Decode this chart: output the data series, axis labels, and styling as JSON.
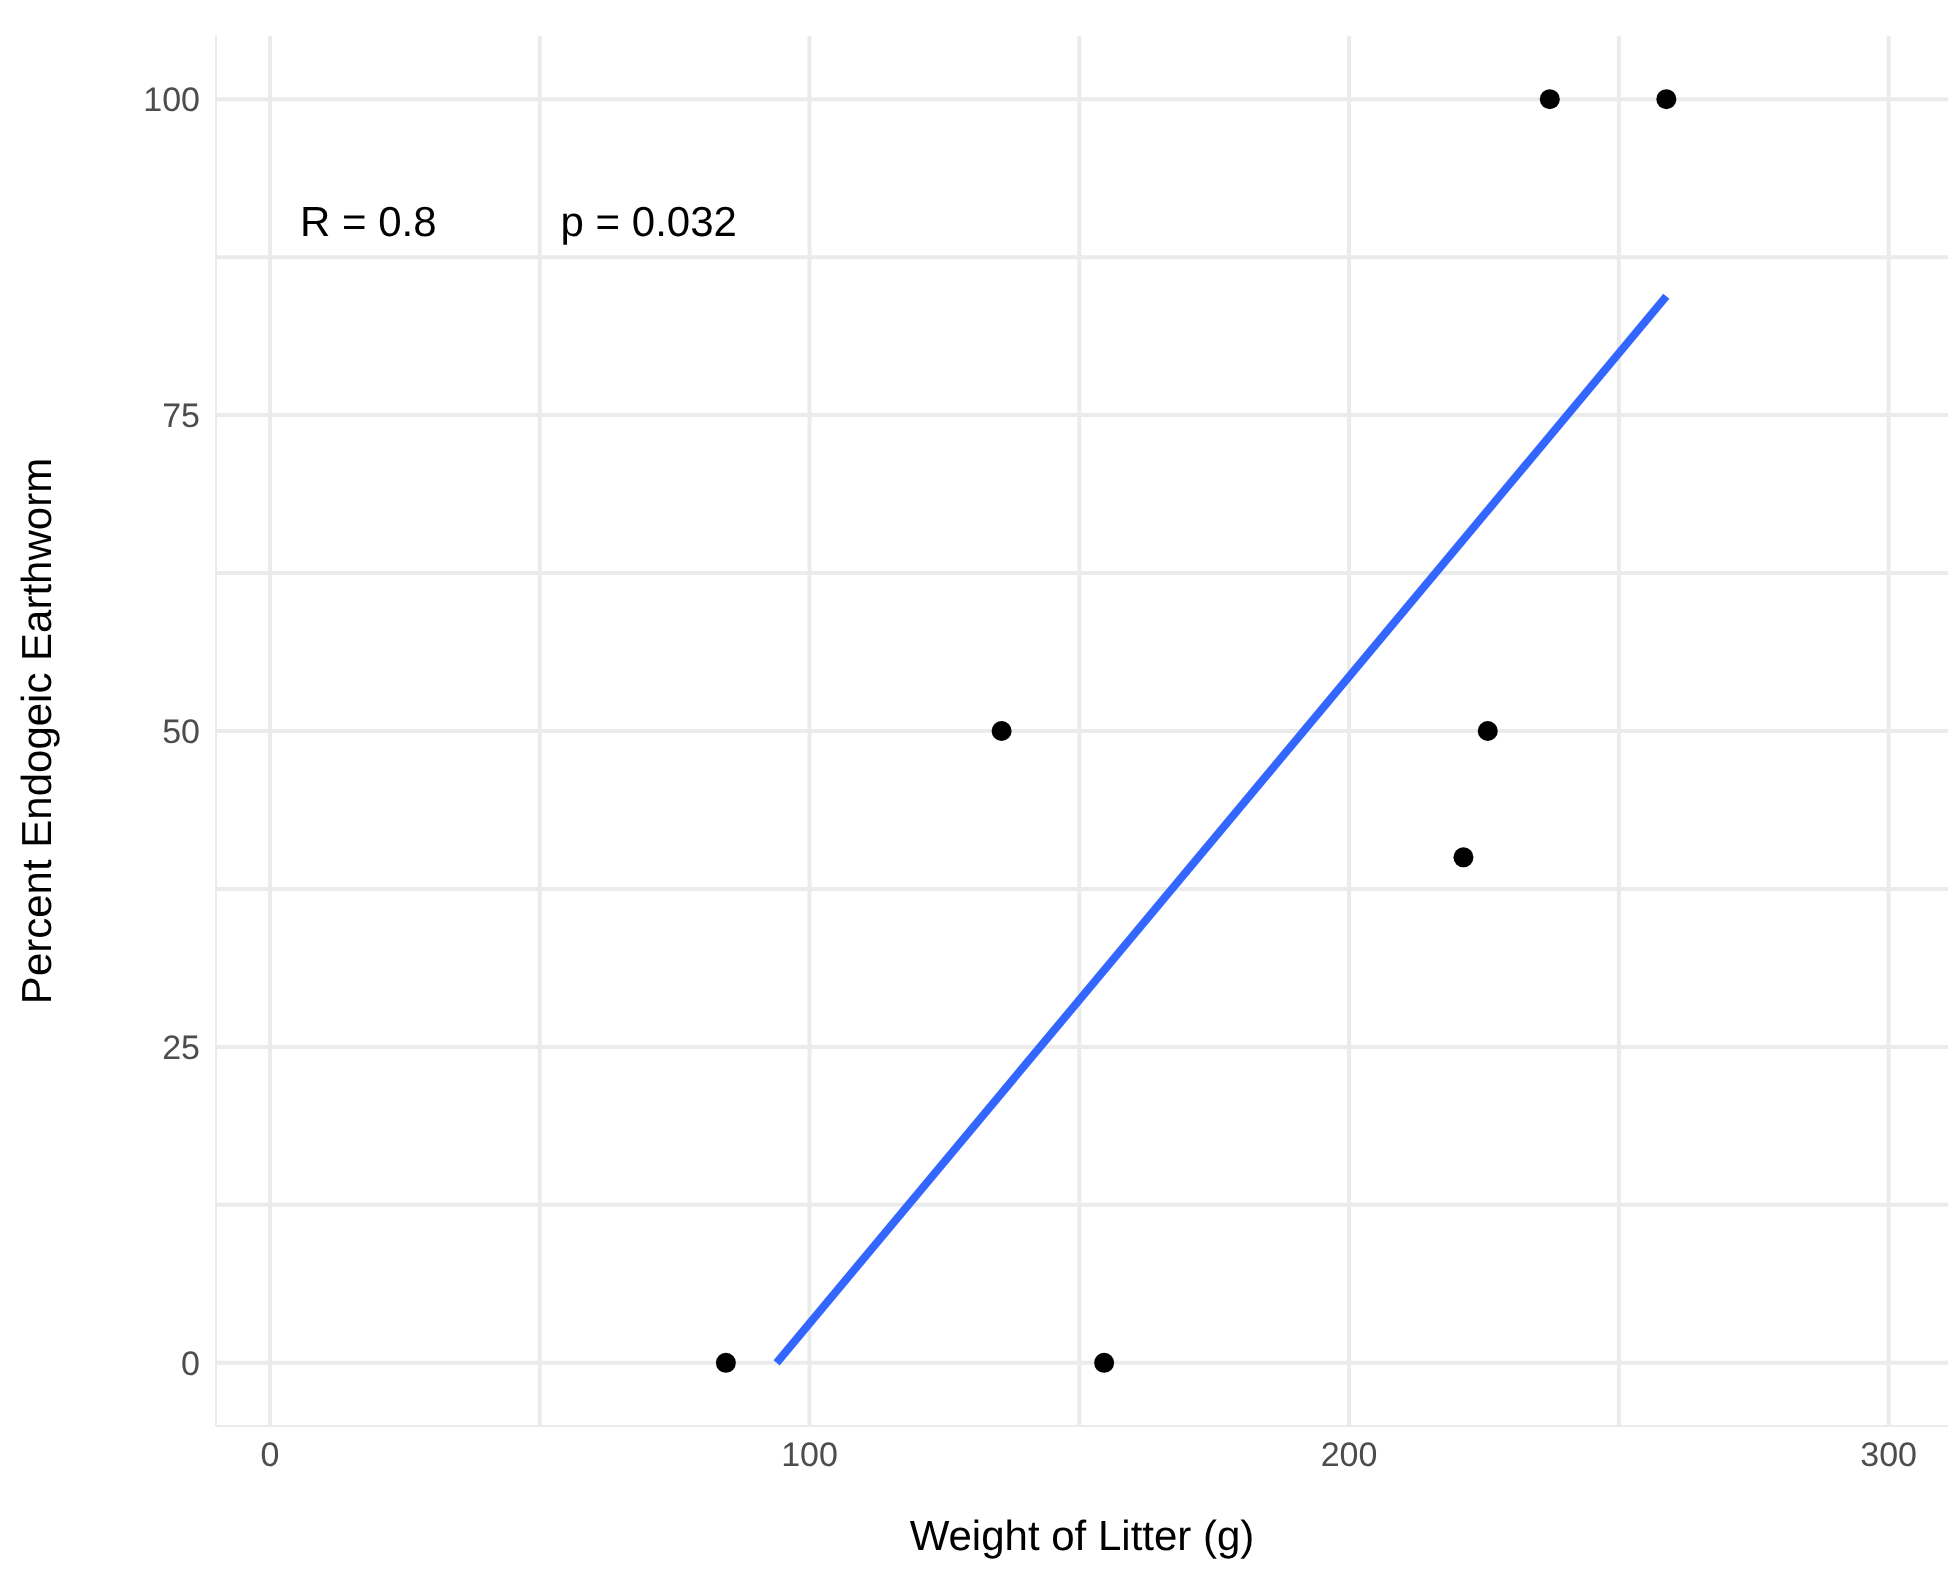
{
  "chart_data": {
    "type": "scatter",
    "xlabel": "Weight of Litter (g)",
    "ylabel": "Percent Endogeic Earthworm",
    "xlim": [
      -10,
      311
    ],
    "ylim": [
      -5,
      105
    ],
    "xticks": [
      0,
      {
        "value": 50,
        "label": null
      },
      100,
      {
        "value": 150,
        "label": null
      },
      200,
      {
        "value": 250,
        "label": null
      },
      300
    ],
    "yticks": [
      0,
      {
        "value": 12.5,
        "label": null
      },
      25,
      {
        "value": 37.5,
        "label": null
      },
      50,
      {
        "value": 62.5,
        "label": null
      },
      75,
      {
        "value": 87.5,
        "label": null
      },
      100
    ],
    "grid": true,
    "series": [
      {
        "marker": "circle",
        "color": "#000000",
        "x": [
          84.5,
          135.6,
          154.6,
          221.2,
          225.7,
          237.2,
          258.8
        ],
        "values": [
          0,
          50,
          0,
          40,
          50,
          100,
          100
        ]
      },
      {
        "type": "line",
        "marker": "none",
        "color": "#3366ff",
        "x": [
          93.9,
          258.8
        ],
        "values": [
          0,
          84.4
        ]
      }
    ],
    "annotations": [
      "R = 0.8",
      "p = 0.032"
    ]
  }
}
